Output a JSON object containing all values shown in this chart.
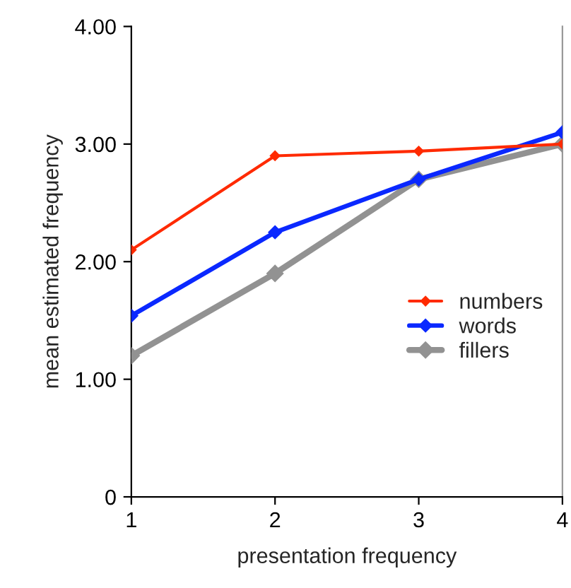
{
  "chart_data": {
    "type": "line",
    "xlabel": "presentation frequency",
    "ylabel": "mean estimated frequency",
    "x": [
      1,
      2,
      3,
      4
    ],
    "series": [
      {
        "name": "numbers",
        "color": "#ff2a00",
        "values": [
          2.1,
          2.9,
          2.94,
          3.0
        ]
      },
      {
        "name": "words",
        "color": "#0a28ff",
        "values": [
          1.54,
          2.25,
          2.7,
          3.1
        ]
      },
      {
        "name": "fillers",
        "color": "#929292",
        "values": [
          1.2,
          1.9,
          2.7,
          3.0
        ]
      }
    ],
    "xlim": [
      1,
      4
    ],
    "xticks": [
      1,
      2,
      3,
      4
    ],
    "ylim": [
      0,
      4
    ],
    "yticks": [
      0,
      {
        "value": 1,
        "label": "1.00"
      },
      {
        "value": 2,
        "label": "2.00"
      },
      {
        "value": 3,
        "label": "3.00"
      },
      {
        "value": 4,
        "label": "4.00"
      }
    ],
    "marker": "diamond",
    "line_style": "solid",
    "grid": false,
    "legend": "right"
  }
}
